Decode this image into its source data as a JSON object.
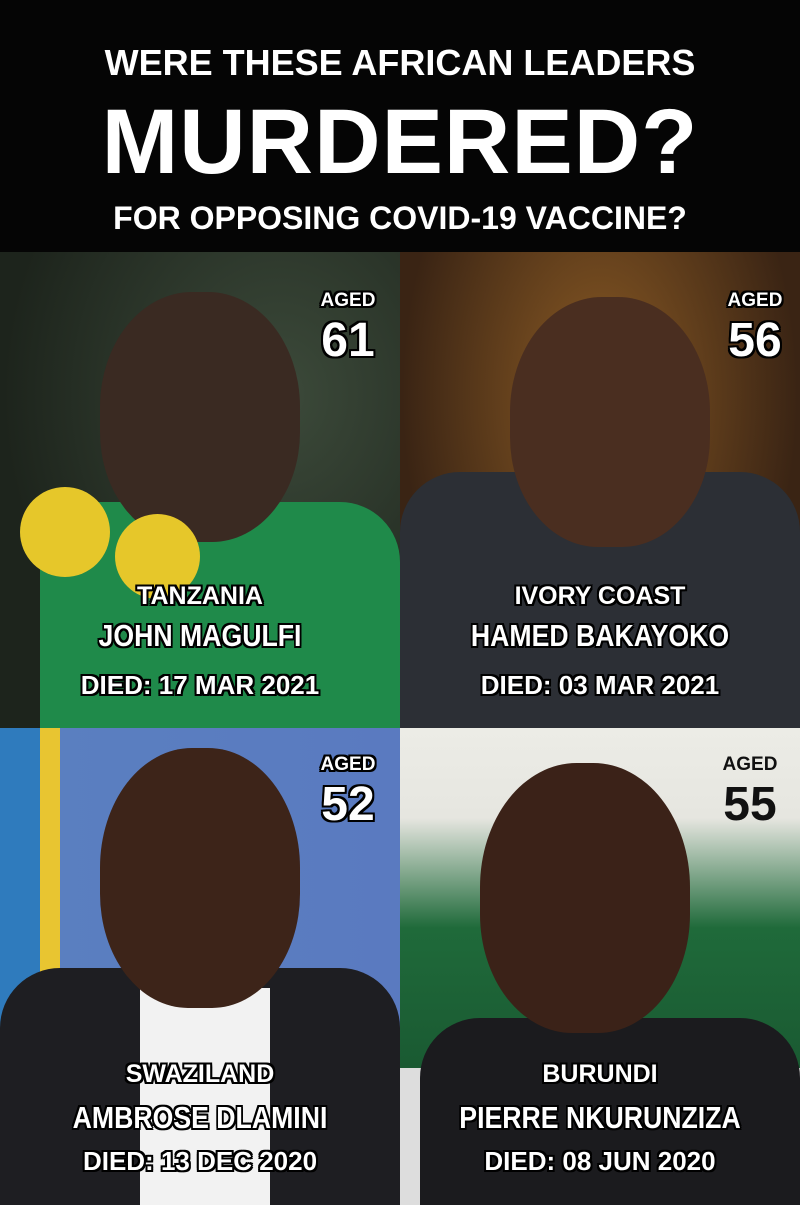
{
  "header": {
    "line1": "WERE THESE AFRICAN LEADERS",
    "line2": "MURDERED?",
    "line3": "FOR OPPOSING COVID-19 VACCINE?"
  },
  "leaders": [
    {
      "aged_label": "AGED",
      "age": "61",
      "country": "TANZANIA",
      "name": "JOHN MAGULFI",
      "died": "DIED: 17 MAR 2021"
    },
    {
      "aged_label": "AGED",
      "age": "56",
      "country": "IVORY COAST",
      "name": "HAMED BAKAYOKO",
      "died": "DIED: 03 MAR 2021"
    },
    {
      "aged_label": "AGED",
      "age": "52",
      "country": "SWAZILAND",
      "name": "AMBROSE DLAMINI",
      "died": "DIED: 13 DEC 2020"
    },
    {
      "aged_label": "AGED",
      "age": "55",
      "country": "BURUNDI",
      "name": "PIERRE NKURUNZIZA",
      "died": "DIED: 08 JUN 2020"
    }
  ],
  "colors": {
    "header_bg": "#050505",
    "text": "#ffffff",
    "outline": "#000000"
  }
}
